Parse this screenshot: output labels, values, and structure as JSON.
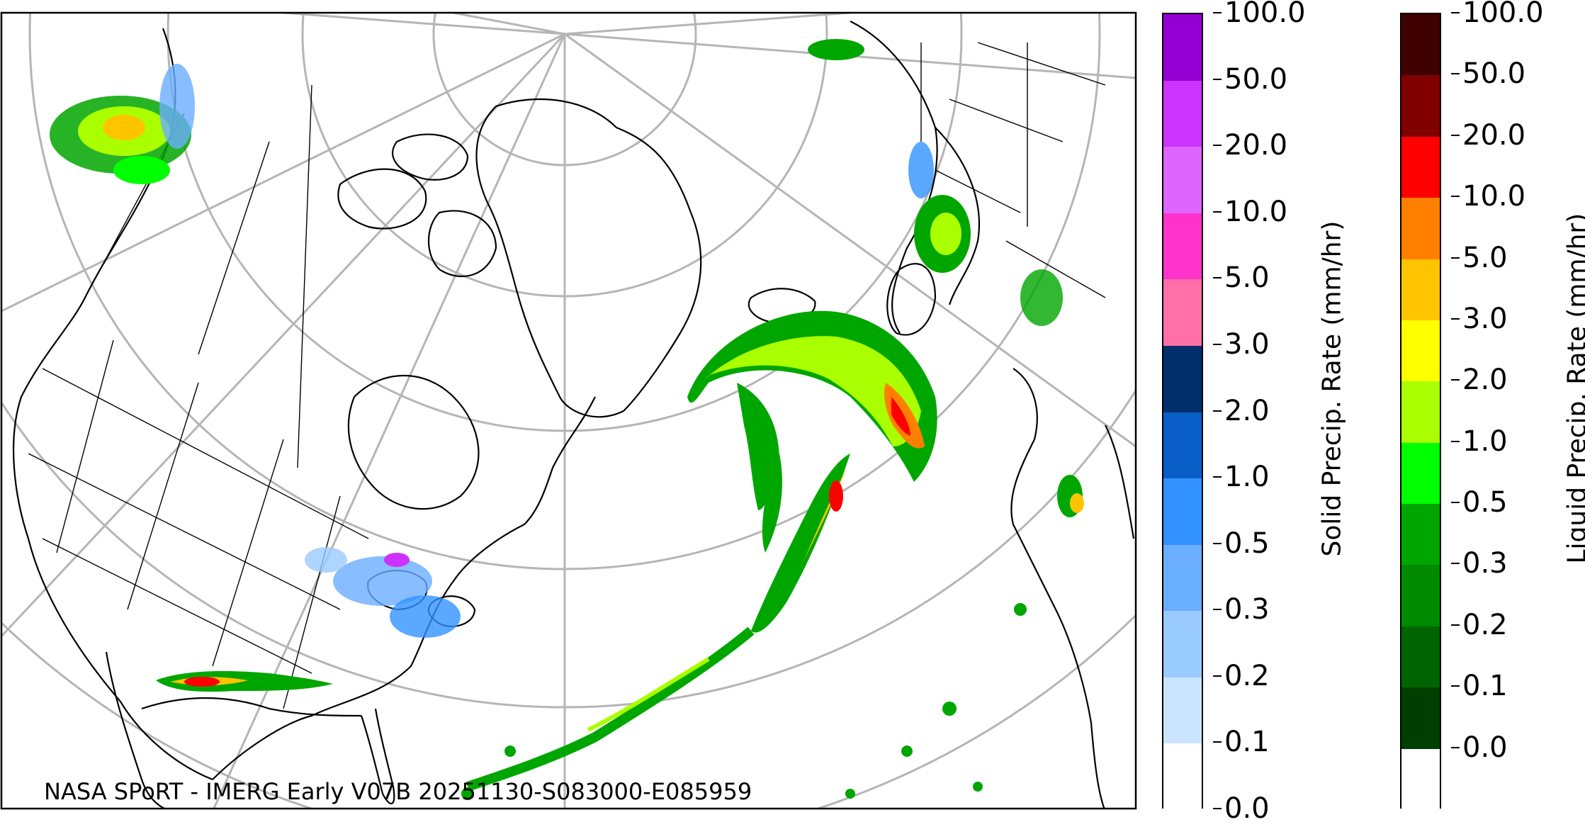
{
  "credit": "NASA SPoRT - IMERG Early V07B 20251130-S083000-E085959",
  "solid_colorbar": {
    "title": "Solid Precip. Rate (mm/hr)",
    "ticks": [
      "100.0",
      "50.0",
      "20.0",
      "10.0",
      "5.0",
      "3.0",
      "2.0",
      "1.0",
      "0.5",
      "0.3",
      "0.2",
      "0.1",
      "0.0"
    ],
    "colors": [
      "#9400d3",
      "#cc33ff",
      "#dd66ff",
      "#ff33cc",
      "#ff6fa8",
      "#002f6c",
      "#0a5ec8",
      "#3192ff",
      "#6aaeff",
      "#9acbff",
      "#cce5ff",
      "#ffffff"
    ]
  },
  "liquid_colorbar": {
    "title": "Liquid Precip. Rate (mm/hr)",
    "ticks": [
      "100.0",
      "50.0",
      "20.0",
      "10.0",
      "5.0",
      "3.0",
      "2.0",
      "1.0",
      "0.5",
      "0.3",
      "0.2",
      "0.1",
      "0.0"
    ],
    "colors": [
      "#3f0000",
      "#800000",
      "#ff0000",
      "#ff7f00",
      "#ffc400",
      "#ffff00",
      "#aaff00",
      "#00ff00",
      "#00a600",
      "#008a00",
      "#006400",
      "#003f00",
      "#ffffff"
    ]
  }
}
